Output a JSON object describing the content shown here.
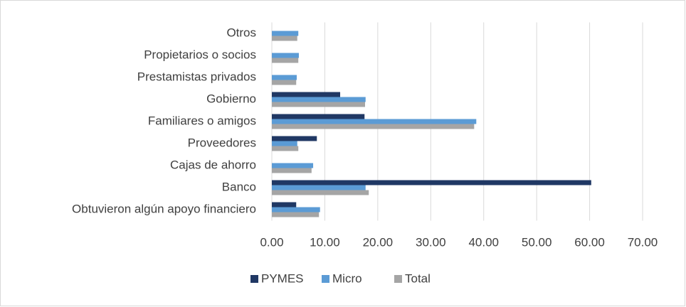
{
  "chart_data": {
    "type": "hbar",
    "categories": [
      "Otros",
      "Propietarios o socios",
      "Prestamistas privados",
      "Gobierno",
      "Familiares o amigos",
      "Proveedores",
      "Cajas de ahorro",
      "Banco",
      "Obtuvieron algún apoyo financiero"
    ],
    "series": [
      {
        "name": "PYMES",
        "color": "#203864",
        "values": [
          0,
          0,
          0,
          12.9,
          17.5,
          8.5,
          0,
          60.3,
          4.6
        ]
      },
      {
        "name": "Micro",
        "color": "#5b9bd5",
        "values": [
          5.0,
          5.1,
          4.7,
          17.7,
          38.6,
          4.8,
          7.8,
          17.7,
          9.1
        ]
      },
      {
        "name": "Total",
        "color": "#a5a5a5",
        "values": [
          4.8,
          5.0,
          4.6,
          17.6,
          38.2,
          5.0,
          7.5,
          18.3,
          8.9
        ]
      }
    ],
    "xlim": [
      0,
      70
    ],
    "xticks": [
      {
        "value": 0,
        "label": "0.00"
      },
      {
        "value": 10,
        "label": "10.00"
      },
      {
        "value": 20,
        "label": "20.00"
      },
      {
        "value": 30,
        "label": "30.00"
      },
      {
        "value": 40,
        "label": "40.00"
      },
      {
        "value": 50,
        "label": "50.00"
      },
      {
        "value": 60,
        "label": "60.00"
      },
      {
        "value": 70,
        "label": "70.00"
      }
    ],
    "grid": true,
    "legend": "bottom"
  }
}
